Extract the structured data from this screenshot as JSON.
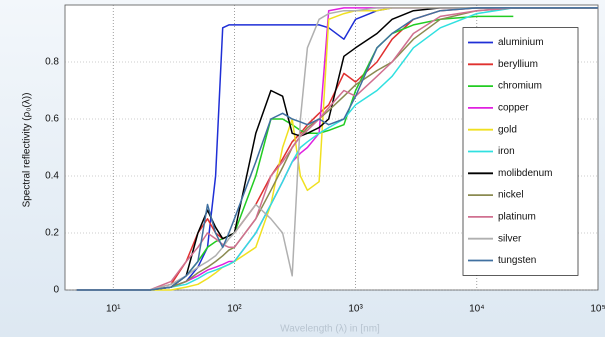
{
  "chart_data": {
    "type": "line",
    "ylabel": "Spectral reflectivity (ρ₀(λ))",
    "xlabel": "Wavelength (λ) in [nm]",
    "xscale": "log",
    "grid": true,
    "legend": "right",
    "xlim": [
      4,
      100000
    ],
    "ylim": [
      0,
      1
    ],
    "xticks": [
      {
        "value": 10,
        "label": "10¹"
      },
      {
        "value": 100,
        "label": "10²"
      },
      {
        "value": 1000,
        "label": "10³"
      },
      {
        "value": 10000,
        "label": "10⁴"
      },
      {
        "value": 100000,
        "label": "10⁵"
      }
    ],
    "yticks": [
      0,
      0.2,
      0.4,
      0.6,
      0.8
    ],
    "x": [
      5,
      10,
      15,
      20,
      30,
      40,
      50,
      60,
      70,
      80,
      90,
      100,
      150,
      200,
      250,
      300,
      350,
      400,
      500,
      600,
      800,
      1000,
      1500,
      2000,
      3000,
      5000,
      10000,
      20000,
      50000,
      100000
    ],
    "series": [
      {
        "name": "aluminium",
        "color": "#1f2fd6",
        "values": [
          0,
          0,
          0,
          0,
          0.01,
          0.03,
          0.08,
          0.15,
          0.4,
          0.92,
          0.93,
          0.93,
          0.93,
          0.93,
          0.93,
          0.93,
          0.93,
          0.93,
          0.93,
          0.92,
          0.88,
          0.95,
          0.98,
          0.99,
          0.99,
          0.99,
          0.99,
          0.99,
          0.99,
          0.99
        ]
      },
      {
        "name": "beryllium",
        "color": "#e0302f",
        "values": [
          0,
          0,
          0,
          0,
          0.02,
          0.1,
          0.2,
          0.25,
          0.2,
          0.18,
          0.19,
          0.2,
          0.3,
          0.4,
          0.46,
          0.52,
          0.55,
          0.58,
          0.62,
          0.65,
          0.76,
          0.73,
          0.8,
          0.88,
          0.95,
          0.98,
          0.99,
          0.99,
          0.99,
          0.99
        ]
      },
      {
        "name": "chromium",
        "color": "#22cc22",
        "values": [
          0,
          0,
          0,
          0,
          0.01,
          0.05,
          0.1,
          0.15,
          0.17,
          0.18,
          0.19,
          0.2,
          0.4,
          0.6,
          0.6,
          0.58,
          0.56,
          0.55,
          0.55,
          0.56,
          0.58,
          0.7,
          0.85,
          0.9,
          0.93,
          0.95,
          0.96,
          0.96,
          null,
          null
        ]
      },
      {
        "name": "copper",
        "color": "#e020e0",
        "values": [
          0,
          0,
          0,
          0,
          0.01,
          0.03,
          0.05,
          0.07,
          0.08,
          0.09,
          0.1,
          0.1,
          0.2,
          0.3,
          0.38,
          0.45,
          0.48,
          0.5,
          0.55,
          0.98,
          0.99,
          0.99,
          0.99,
          0.99,
          0.99,
          0.99,
          0.99,
          0.99,
          0.99,
          0.99
        ]
      },
      {
        "name": "gold",
        "color": "#f0e020",
        "values": [
          0,
          0,
          0,
          0,
          0,
          0.01,
          0.02,
          0.04,
          0.06,
          0.08,
          0.09,
          0.1,
          0.15,
          0.3,
          0.5,
          0.6,
          0.4,
          0.35,
          0.38,
          0.95,
          0.97,
          0.98,
          0.98,
          0.99,
          0.99,
          0.99,
          0.99,
          0.99,
          0.99,
          0.99
        ]
      },
      {
        "name": "iron",
        "color": "#30e0e0",
        "values": [
          0,
          0,
          0,
          0,
          0.01,
          0.02,
          0.04,
          0.06,
          0.07,
          0.08,
          0.09,
          0.1,
          0.2,
          0.3,
          0.38,
          0.45,
          0.5,
          0.52,
          0.55,
          0.57,
          0.6,
          0.65,
          0.7,
          0.75,
          0.85,
          0.92,
          0.97,
          0.99,
          0.99,
          0.99
        ]
      },
      {
        "name": "molibdenum",
        "color": "#000000",
        "values": [
          0,
          0,
          0,
          0,
          0.01,
          0.05,
          0.2,
          0.28,
          0.22,
          0.18,
          0.19,
          0.2,
          0.55,
          0.7,
          0.68,
          0.55,
          0.54,
          0.55,
          0.57,
          0.6,
          0.82,
          0.85,
          0.9,
          0.95,
          0.98,
          0.99,
          0.99,
          0.99,
          0.99,
          0.99
        ]
      },
      {
        "name": "nickel",
        "color": "#8a8a50",
        "values": [
          0,
          0,
          0,
          0,
          0.01,
          0.03,
          0.06,
          0.08,
          0.1,
          0.12,
          0.14,
          0.15,
          0.25,
          0.35,
          0.43,
          0.5,
          0.54,
          0.57,
          0.6,
          0.63,
          0.68,
          0.72,
          0.77,
          0.8,
          0.88,
          0.95,
          0.98,
          0.99,
          0.99,
          0.99
        ]
      },
      {
        "name": "platinum",
        "color": "#d07090",
        "values": [
          0,
          0,
          0,
          0,
          0.03,
          0.1,
          0.15,
          0.2,
          0.18,
          0.16,
          0.15,
          0.15,
          0.25,
          0.4,
          0.45,
          0.5,
          0.54,
          0.56,
          0.6,
          0.64,
          0.7,
          0.68,
          0.75,
          0.8,
          0.9,
          0.96,
          0.98,
          0.99,
          0.99,
          0.99
        ]
      },
      {
        "name": "silver",
        "color": "#b0b0b0",
        "values": [
          0,
          0,
          0,
          0,
          0.02,
          0.05,
          0.08,
          0.1,
          0.12,
          0.15,
          0.18,
          0.2,
          0.3,
          0.25,
          0.2,
          0.05,
          0.6,
          0.85,
          0.95,
          0.97,
          0.98,
          0.98,
          0.99,
          0.99,
          0.99,
          0.99,
          0.99,
          0.99,
          0.99,
          0.99
        ]
      },
      {
        "name": "tungsten",
        "color": "#4070a0",
        "values": [
          0,
          0,
          0,
          0,
          0.01,
          0.05,
          0.1,
          0.3,
          0.2,
          0.15,
          0.2,
          0.25,
          0.45,
          0.6,
          0.62,
          0.6,
          0.59,
          0.58,
          0.6,
          0.58,
          0.6,
          0.68,
          0.85,
          0.9,
          0.95,
          0.98,
          0.99,
          0.99,
          0.99,
          0.99
        ]
      }
    ]
  }
}
